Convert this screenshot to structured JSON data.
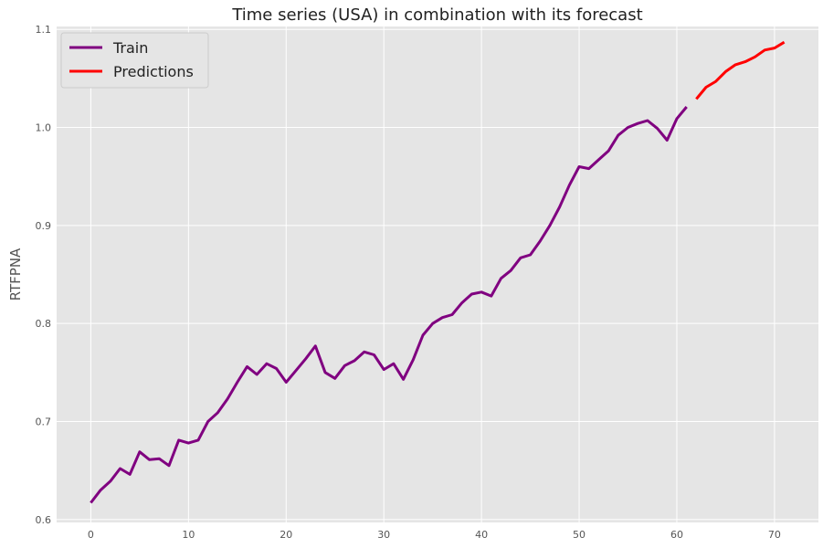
{
  "chart_data": {
    "type": "line",
    "title": "Time series (USA) in combination with its forecast",
    "xlabel": "",
    "ylabel": "RTFPNA",
    "xlim": [
      -3.5,
      74.5
    ],
    "ylim": [
      0.597,
      1.103
    ],
    "xticks": [
      0,
      10,
      20,
      30,
      40,
      50,
      60,
      70
    ],
    "yticks": [
      0.6,
      0.7,
      0.8,
      0.9,
      1.0,
      1.1
    ],
    "xtick_labels": [
      "0",
      "10",
      "20",
      "30",
      "40",
      "50",
      "60",
      "70"
    ],
    "ytick_labels": [
      "0.6",
      "0.7",
      "0.8",
      "0.9",
      "1.0",
      "1.1"
    ],
    "grid": true,
    "legend_position": "top-left",
    "series": [
      {
        "name": "Train",
        "color": "#800080",
        "x": [
          0,
          1,
          2,
          3,
          4,
          5,
          6,
          7,
          8,
          9,
          10,
          11,
          12,
          13,
          14,
          15,
          16,
          17,
          18,
          19,
          20,
          21,
          22,
          23,
          24,
          25,
          26,
          27,
          28,
          29,
          30,
          31,
          32,
          33,
          34,
          35,
          36,
          37,
          38,
          39,
          40,
          41,
          42,
          43,
          44,
          45,
          46,
          47,
          48,
          49,
          50,
          51,
          52,
          53,
          54,
          55,
          56,
          57,
          58,
          59,
          60,
          61
        ],
        "values": [
          0.617,
          0.63,
          0.639,
          0.652,
          0.646,
          0.669,
          0.661,
          0.662,
          0.655,
          0.681,
          0.678,
          0.681,
          0.7,
          0.709,
          0.723,
          0.74,
          0.756,
          0.748,
          0.759,
          0.754,
          0.74,
          0.752,
          0.764,
          0.777,
          0.75,
          0.744,
          0.757,
          0.762,
          0.771,
          0.768,
          0.753,
          0.759,
          0.743,
          0.763,
          0.788,
          0.8,
          0.806,
          0.809,
          0.821,
          0.83,
          0.832,
          0.828,
          0.846,
          0.854,
          0.867,
          0.87,
          0.884,
          0.9,
          0.919,
          0.941,
          0.96,
          0.958,
          0.967,
          0.976,
          0.992,
          1.0,
          1.004,
          1.007,
          0.999,
          0.987,
          1.009,
          1.021
        ]
      },
      {
        "name": "Predictions",
        "color": "#ff0000",
        "x": [
          62,
          63,
          64,
          65,
          66,
          67,
          68,
          69,
          70,
          71
        ],
        "values": [
          1.029,
          1.041,
          1.047,
          1.057,
          1.064,
          1.067,
          1.072,
          1.079,
          1.081,
          1.087
        ]
      }
    ]
  }
}
